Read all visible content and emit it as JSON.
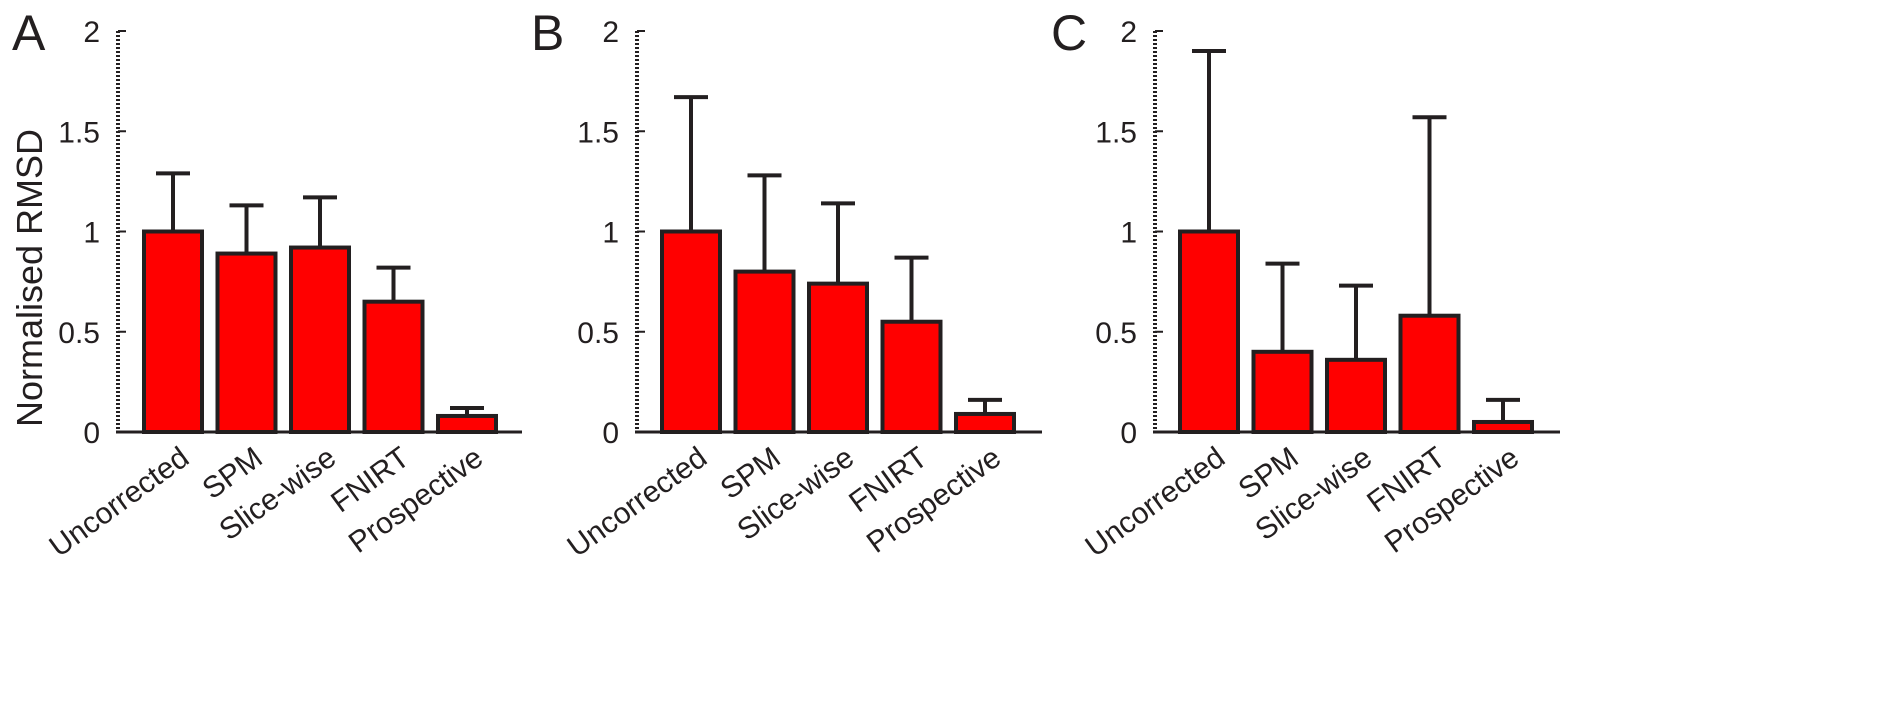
{
  "figure": {
    "ylabel": "Normalised RMSD",
    "bar_color": "#ff0000",
    "edge_color": "#231f20"
  },
  "chart_data": [
    {
      "type": "bar",
      "panel_label": "A",
      "categories": [
        "Uncorrected",
        "SPM",
        "Slice-wise",
        "FNIRT",
        "Prospective"
      ],
      "values": [
        1.0,
        0.89,
        0.92,
        0.65,
        0.08
      ],
      "error_upper": [
        1.29,
        1.13,
        1.17,
        0.82,
        0.12
      ],
      "ylabel": "Normalised RMSD",
      "ylim": [
        0,
        2
      ],
      "yticks": [
        0,
        0.5,
        1,
        1.5,
        2
      ],
      "ytick_labels": [
        "0",
        "0.5",
        "1",
        "1.5",
        "2"
      ]
    },
    {
      "type": "bar",
      "panel_label": "B",
      "categories": [
        "Uncorrected",
        "SPM",
        "Slice-wise",
        "FNIRT",
        "Prospective"
      ],
      "values": [
        1.0,
        0.8,
        0.74,
        0.55,
        0.09
      ],
      "error_upper": [
        1.67,
        1.28,
        1.14,
        0.87,
        0.16
      ],
      "ylabel": "",
      "ylim": [
        0,
        2
      ],
      "yticks": [
        0,
        0.5,
        1,
        1.5,
        2
      ],
      "ytick_labels": [
        "0",
        "0.5",
        "1",
        "1.5",
        "2"
      ]
    },
    {
      "type": "bar",
      "panel_label": "C",
      "categories": [
        "Uncorrected",
        "SPM",
        "Slice-wise",
        "FNIRT",
        "Prospective"
      ],
      "values": [
        1.0,
        0.4,
        0.36,
        0.58,
        0.05
      ],
      "error_upper": [
        1.9,
        0.84,
        0.73,
        1.57,
        0.16
      ],
      "ylabel": "",
      "ylim": [
        0,
        2
      ],
      "yticks": [
        0,
        0.5,
        1,
        1.5,
        2
      ],
      "ytick_labels": [
        "0",
        "0.5",
        "1",
        "1.5",
        "2"
      ]
    }
  ]
}
